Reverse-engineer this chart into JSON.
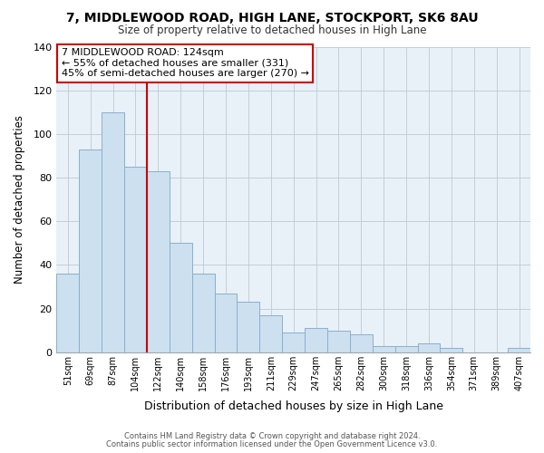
{
  "title": "7, MIDDLEWOOD ROAD, HIGH LANE, STOCKPORT, SK6 8AU",
  "subtitle": "Size of property relative to detached houses in High Lane",
  "xlabel": "Distribution of detached houses by size in High Lane",
  "ylabel": "Number of detached properties",
  "bar_labels": [
    "51sqm",
    "69sqm",
    "87sqm",
    "104sqm",
    "122sqm",
    "140sqm",
    "158sqm",
    "176sqm",
    "193sqm",
    "211sqm",
    "229sqm",
    "247sqm",
    "265sqm",
    "282sqm",
    "300sqm",
    "318sqm",
    "336sqm",
    "354sqm",
    "371sqm",
    "389sqm",
    "407sqm"
  ],
  "bar_values": [
    36,
    93,
    110,
    85,
    83,
    50,
    36,
    27,
    23,
    17,
    9,
    11,
    10,
    8,
    3,
    3,
    4,
    2,
    0,
    0,
    2
  ],
  "bar_color": "#cce0f0",
  "bar_edge_color": "#8ab0cc",
  "vline_color": "#cc0000",
  "annotation_title": "7 MIDDLEWOOD ROAD: 124sqm",
  "annotation_line1": "← 55% of detached houses are smaller (331)",
  "annotation_line2": "45% of semi-detached houses are larger (270) →",
  "annotation_box_color": "#ffffff",
  "annotation_box_edge": "#cc0000",
  "ylim": [
    0,
    140
  ],
  "yticks": [
    0,
    20,
    40,
    60,
    80,
    100,
    120,
    140
  ],
  "footnote1": "Contains HM Land Registry data © Crown copyright and database right 2024.",
  "footnote2": "Contains public sector information licensed under the Open Government Licence v3.0.",
  "bg_color": "#e8f0f8"
}
